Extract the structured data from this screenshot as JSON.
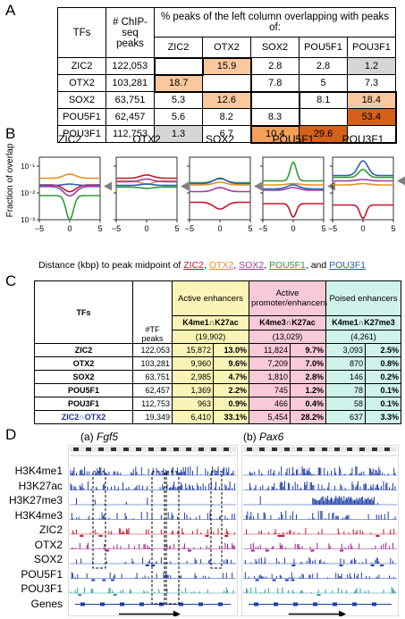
{
  "panels": {
    "A": "A",
    "B": "B",
    "C": "C",
    "D": "D"
  },
  "tableA": {
    "header_tfs": "TFs",
    "header_peaks": "# ChIP-seq peaks",
    "header_overlap": "% peaks of the left column overlapping with peaks of:",
    "cols": [
      "ZIC2",
      "OTX2",
      "SOX2",
      "POU5F1",
      "POU3F1"
    ],
    "rows": [
      {
        "tf": "ZIC2",
        "peaks": "122,053",
        "vals": [
          "",
          "15.9",
          "2.8",
          "2.8",
          "1.2"
        ]
      },
      {
        "tf": "OTX2",
        "peaks": "103,281",
        "vals": [
          "18.7",
          "",
          "7.8",
          "5",
          "7.3"
        ]
      },
      {
        "tf": "SOX2",
        "peaks": "63,751",
        "vals": [
          "5.3",
          "12.6",
          "",
          "8.1",
          "18.4"
        ]
      },
      {
        "tf": "POU5F1",
        "peaks": "62,457",
        "vals": [
          "5.6",
          "8.2",
          "8.3",
          "",
          "53.4"
        ]
      },
      {
        "tf": "POU3F1",
        "peaks": "112,753",
        "vals": [
          "1.3",
          "6.7",
          "10.4",
          "29.6",
          ""
        ]
      }
    ]
  },
  "panelB": {
    "titles": [
      "ZIC2",
      "OTX2",
      "SOX2",
      "POU5F1",
      "POU3F1"
    ],
    "ylabel": "Fraction of overlap",
    "yticks": [
      "10⁻¹",
      "10⁻²",
      "10⁻³"
    ],
    "xticks": [
      "−5",
      "0",
      "5"
    ],
    "xlabel_prefix": "Distance (kbp) to peak midpoint of ",
    "xlabel_items": [
      "ZIC2",
      "OTX2",
      "SOX2",
      "POU5F1"
    ],
    "xlabel_and": ", and ",
    "xlabel_last": "POU3F1",
    "colors": {
      "ZIC2": "#c0182a",
      "OTX2": "#e8901c",
      "SOX2": "#9b3fa0",
      "POU5F1": "#2f9a3a",
      "POU3F1": "#2a62b0"
    }
  },
  "tableC": {
    "header_tfs": "TFs",
    "header_peaks": "#TF peaks",
    "groups": [
      {
        "title": "Active enhancers",
        "mark": "K4me1∩K27ac",
        "count": "(19,902)"
      },
      {
        "title": "Active promoter/enhancers",
        "mark": "K4me3∩K27ac",
        "count": "(13,029)"
      },
      {
        "title": "Poised enhancers",
        "mark": "K4me1∩K27me3",
        "count": "(4,261)"
      }
    ],
    "rows": [
      {
        "tf": "ZIC2",
        "peaks": "122,053",
        "v": [
          "15,872",
          "13.0%",
          "11,824",
          "9.7%",
          "3,093",
          "2.5%"
        ]
      },
      {
        "tf": "OTX2",
        "peaks": "103,281",
        "v": [
          "9,960",
          "9.6%",
          "7,209",
          "7.0%",
          "870",
          "0.8%"
        ]
      },
      {
        "tf": "SOX2",
        "peaks": "63,751",
        "v": [
          "2,985",
          "4.7%",
          "1,810",
          "2.8%",
          "146",
          "0.2%"
        ]
      },
      {
        "tf": "POU5F1",
        "peaks": "62,457",
        "v": [
          "1,369",
          "2.2%",
          "745",
          "1.2%",
          "78",
          "0.1%"
        ]
      },
      {
        "tf": "POU3F1",
        "peaks": "112,753",
        "v": [
          "963",
          "0.9%",
          "466",
          "0.4%",
          "58",
          "0.1%"
        ]
      },
      {
        "tf": "ZIC2∩OTX2",
        "peaks": "19,349",
        "v": [
          "6,410",
          "33.1%",
          "5,454",
          "28.2%",
          "637",
          "3.3%"
        ]
      }
    ]
  },
  "panelD": {
    "title_a_prefix": "(a) ",
    "title_a_gene": "Fgf5",
    "title_b_prefix": "(b) ",
    "title_b_gene": "Pax6",
    "tracks": [
      "H3K4me1",
      "H3K27ac",
      "H3K27me3",
      "H3K4me3",
      "ZIC2",
      "OTX2",
      "SOX2",
      "POU5F1",
      "POU3F1",
      "Genes"
    ],
    "track_colors": [
      "#1f3fa8",
      "#1f3fa8",
      "#1f3fa8",
      "#1f3fa8",
      "#c0182a",
      "#9b1f8f",
      "#1f3fa8",
      "#1f3fa8",
      "#2f9a9a",
      "#1f3fa8"
    ]
  }
}
